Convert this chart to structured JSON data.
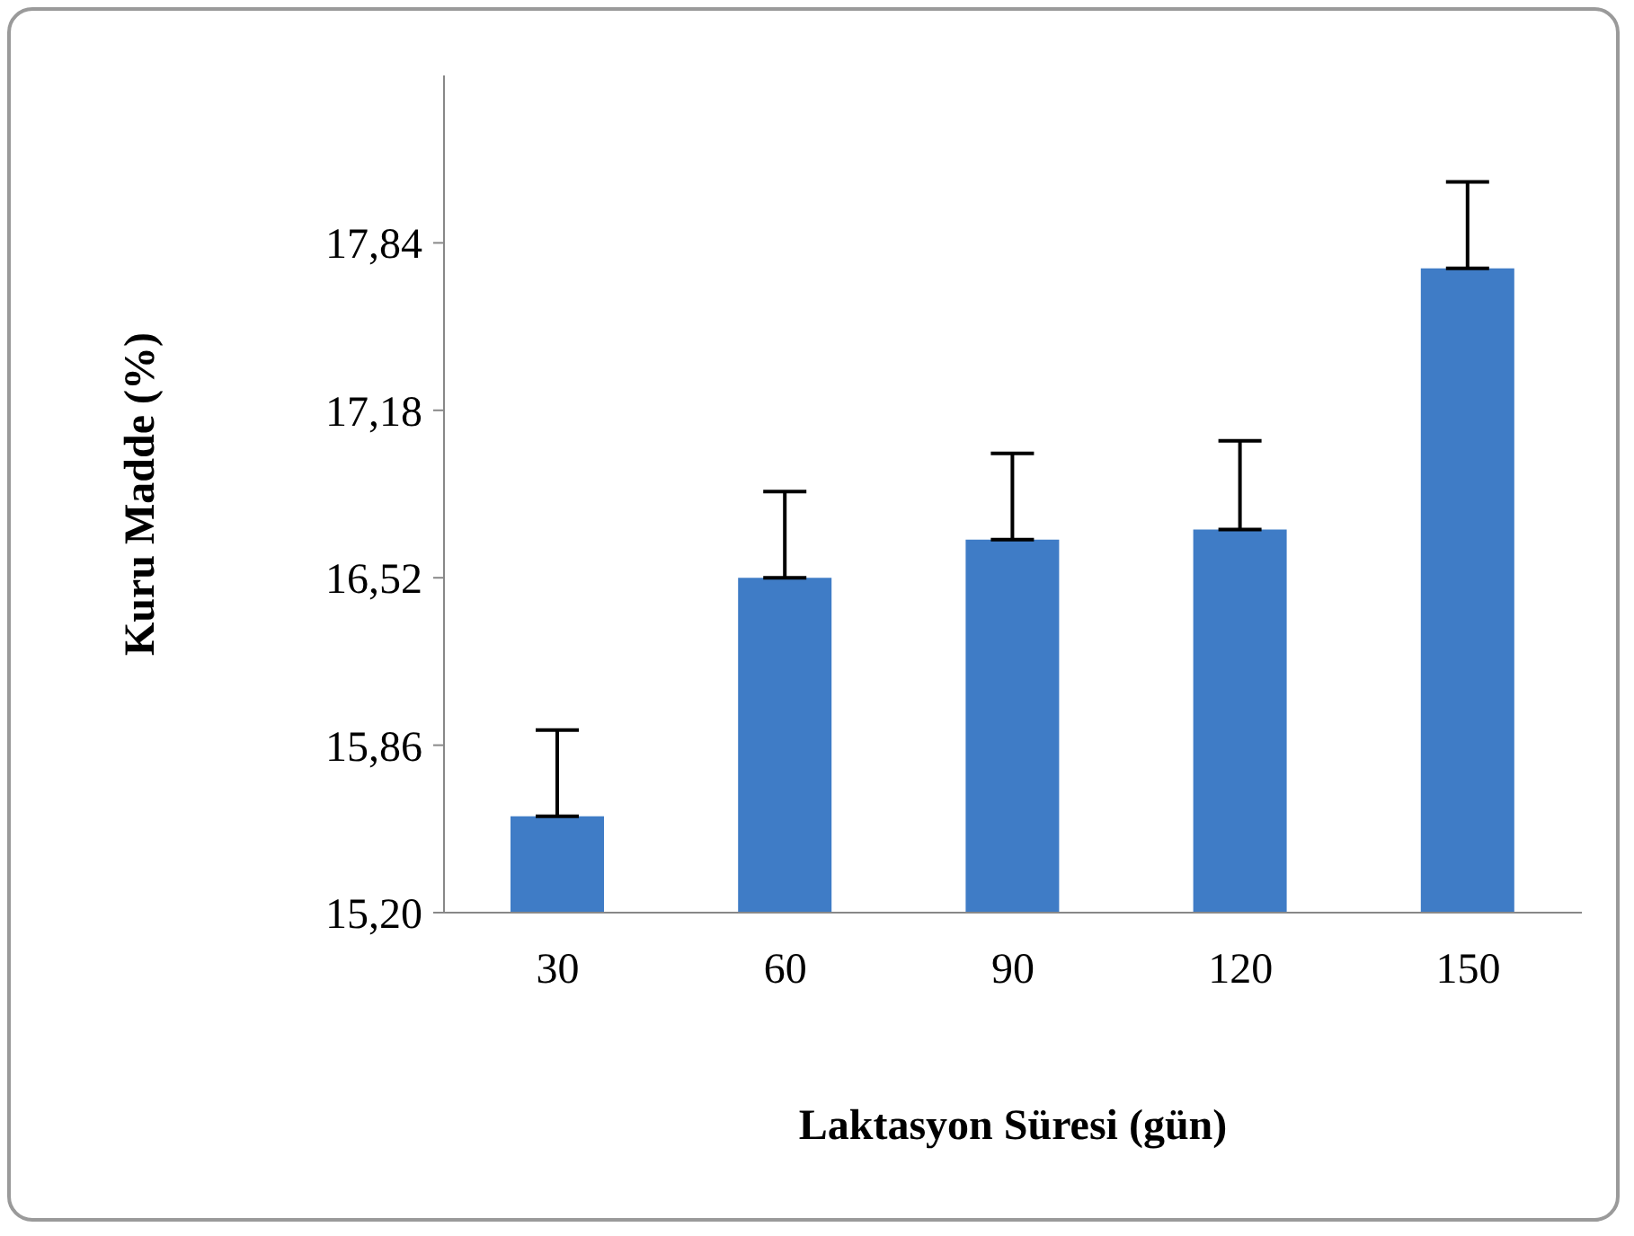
{
  "chart_data": {
    "type": "bar",
    "xlabel": "Laktasyon Süresi (gün)",
    "ylabel": "Kuru Madde (%)",
    "categories": [
      "30",
      "60",
      "90",
      "120",
      "150"
    ],
    "values": [
      15.58,
      16.52,
      16.67,
      16.71,
      17.74
    ],
    "errors": [
      [
        15.58,
        15.92
      ],
      [
        16.52,
        16.86
      ],
      [
        16.67,
        17.01
      ],
      [
        16.71,
        17.06
      ],
      [
        17.74,
        18.08
      ]
    ],
    "color": "#3f7cc6",
    "ylim": [
      15.2,
      18.5
    ],
    "yticks": [
      {
        "value": 15.2,
        "label": "15,20"
      },
      {
        "value": 15.86,
        "label": "15,86"
      },
      {
        "value": 16.52,
        "label": "16,52"
      },
      {
        "value": 17.18,
        "label": "17,18"
      },
      {
        "value": 17.84,
        "label": "17,84"
      }
    ],
    "grid": false,
    "legend": false
  }
}
